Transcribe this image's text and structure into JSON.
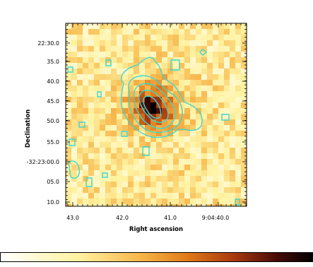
{
  "image": {
    "x_axis": {
      "label": "Right ascension",
      "ticks": [
        "43.0",
        "42.0",
        "41.0",
        "9:04:40.0"
      ]
    },
    "y_axis": {
      "label": "Declination",
      "ticks": [
        "22:30.0",
        "35.0",
        "40.0",
        "45.0",
        "50.0",
        "55.0",
        "-32:23:00.0",
        "05.0",
        "10.0"
      ]
    }
  }
}
